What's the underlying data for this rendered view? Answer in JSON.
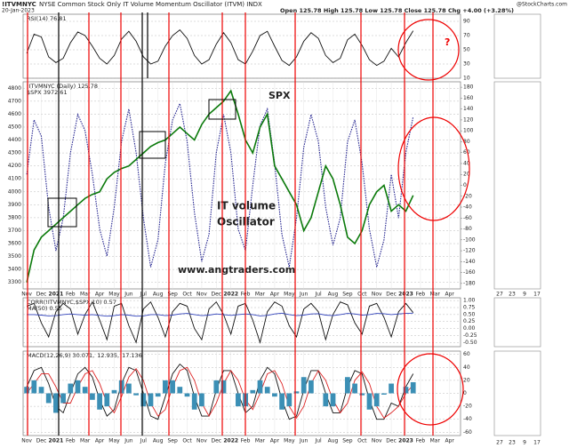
{
  "header": {
    "symbol": "!ITVMNYC",
    "title": "NYSE Common Stock Only IT Volume Momentum Oscillator (ITVM) INDX",
    "source": "@StockCharts.com",
    "date": "20-Jan-2023",
    "quote": "Open 125.78 High 125.78 Low 125.78 Close 125.78 Chg +4.00 (+3.28%)"
  },
  "inset": {
    "xlabels": [
      "27",
      "23",
      "9",
      "17"
    ]
  },
  "chart_data": [
    {
      "type": "line",
      "xlim": [
        -0.5,
        59.5
      ],
      "x": [
        0,
        1,
        2,
        3,
        4,
        5,
        6,
        7,
        8,
        9,
        10,
        11,
        12,
        13,
        14,
        15,
        16,
        17,
        18,
        19,
        20,
        21,
        22,
        23,
        24,
        25,
        26,
        27,
        28,
        29,
        30,
        31,
        32,
        33,
        34,
        35,
        36,
        37,
        38,
        39,
        40,
        41,
        42,
        43,
        44,
        45,
        46,
        47,
        48,
        49,
        50,
        51,
        52,
        53
      ],
      "ylim": [
        10,
        100
      ],
      "yticks": [
        10,
        30,
        50,
        70,
        90
      ],
      "grid": true,
      "series": [
        {
          "name": "RSI(14) 76.81",
          "color": "#111111",
          "values": [
            45,
            72,
            68,
            40,
            32,
            38,
            60,
            75,
            70,
            55,
            38,
            30,
            42,
            65,
            76,
            62,
            40,
            30,
            34,
            55,
            70,
            78,
            66,
            42,
            30,
            36,
            58,
            74,
            60,
            36,
            30,
            48,
            70,
            76,
            55,
            35,
            28,
            40,
            62,
            74,
            66,
            42,
            32,
            38,
            64,
            72,
            56,
            36,
            28,
            34,
            52,
            40,
            60,
            76.81
          ]
        }
      ]
    },
    {
      "type": "line",
      "xlim": [
        -0.5,
        59.5
      ],
      "x": [
        0,
        1,
        2,
        3,
        4,
        5,
        6,
        7,
        8,
        9,
        10,
        11,
        12,
        13,
        14,
        15,
        16,
        17,
        18,
        19,
        20,
        21,
        22,
        23,
        24,
        25,
        26,
        27,
        28,
        29,
        30,
        31,
        32,
        33,
        34,
        35,
        36,
        37,
        38,
        39,
        40,
        41,
        42,
        43,
        44,
        45,
        46,
        47,
        48,
        49,
        50,
        51,
        52,
        53
      ],
      "ylim": [
        3250,
        4850
      ],
      "yticks": [
        3300,
        3400,
        3500,
        3600,
        3700,
        3800,
        3900,
        4000,
        4100,
        4200,
        4300,
        4400,
        4500,
        4600,
        4700,
        4800
      ],
      "y2lim": [
        -190,
        190
      ],
      "y2ticks": [
        -180,
        -160,
        -140,
        -120,
        -100,
        -80,
        -60,
        -40,
        -20,
        0,
        20,
        40,
        60,
        80,
        100,
        120,
        140,
        160,
        180
      ],
      "grid": true,
      "xticks": [
        {
          "value": 0,
          "label": "Nov"
        },
        {
          "value": 2,
          "label": "Dec"
        },
        {
          "value": 4,
          "label": "2021"
        },
        {
          "value": 6,
          "label": "Feb"
        },
        {
          "value": 8,
          "label": "Mar"
        },
        {
          "value": 10,
          "label": "Apr"
        },
        {
          "value": 12,
          "label": "May"
        },
        {
          "value": 14,
          "label": "Jun"
        },
        {
          "value": 16,
          "label": "Jul"
        },
        {
          "value": 18,
          "label": "Aug"
        },
        {
          "value": 20,
          "label": "Sep"
        },
        {
          "value": 22,
          "label": "Oct"
        },
        {
          "value": 24,
          "label": "Nov"
        },
        {
          "value": 26,
          "label": "Dec"
        },
        {
          "value": 28,
          "label": "2022"
        },
        {
          "value": 30,
          "label": "Feb"
        },
        {
          "value": 32,
          "label": "Mar"
        },
        {
          "value": 34,
          "label": "Apr"
        },
        {
          "value": 36,
          "label": "May"
        },
        {
          "value": 38,
          "label": "Jun"
        },
        {
          "value": 40,
          "label": "Jul"
        },
        {
          "value": 42,
          "label": "Aug"
        },
        {
          "value": 44,
          "label": "Sep"
        },
        {
          "value": 46,
          "label": "Oct"
        },
        {
          "value": 48,
          "label": "Nov"
        },
        {
          "value": 50,
          "label": "Dec"
        },
        {
          "value": 52,
          "label": "2023"
        },
        {
          "value": 54,
          "label": "Feb"
        },
        {
          "value": 56,
          "label": "Mar"
        },
        {
          "value": 58,
          "label": "Apr"
        }
      ],
      "annotations": [
        "SPX",
        "IT volume",
        "Oscillator",
        "www.angtraders.com"
      ],
      "series": [
        {
          "name": "!ITVMNYC (Daily) 125.78",
          "color": "#23238f",
          "axis": "y2",
          "values": [
            20,
            120,
            90,
            -40,
            -120,
            -60,
            60,
            130,
            100,
            20,
            -80,
            -130,
            -40,
            80,
            140,
            60,
            -60,
            -150,
            -100,
            40,
            120,
            150,
            80,
            -50,
            -140,
            -90,
            60,
            130,
            60,
            -80,
            -120,
            0,
            110,
            140,
            40,
            -90,
            -150,
            -60,
            70,
            130,
            80,
            -40,
            -110,
            -60,
            80,
            120,
            40,
            -80,
            -150,
            -100,
            20,
            -60,
            60,
            125.78
          ]
        },
        {
          "name": "$SPX 3972.61",
          "color": "#0b7a0b",
          "values": [
            3300,
            3550,
            3650,
            3700,
            3750,
            3800,
            3850,
            3900,
            3950,
            3980,
            4000,
            4100,
            4150,
            4180,
            4200,
            4250,
            4300,
            4350,
            4380,
            4400,
            4450,
            4500,
            4450,
            4400,
            4520,
            4600,
            4650,
            4700,
            4780,
            4600,
            4400,
            4300,
            4500,
            4600,
            4200,
            4100,
            4000,
            3900,
            3700,
            3800,
            4000,
            4200,
            4100,
            3900,
            3650,
            3600,
            3700,
            3900,
            4000,
            4050,
            3850,
            3900,
            3850,
            3972.61
          ]
        }
      ]
    },
    {
      "type": "line",
      "xlim": [
        -0.5,
        59.5
      ],
      "x": [
        0,
        1,
        2,
        3,
        4,
        5,
        6,
        7,
        8,
        9,
        10,
        11,
        12,
        13,
        14,
        15,
        16,
        17,
        18,
        19,
        20,
        21,
        22,
        23,
        24,
        25,
        26,
        27,
        28,
        29,
        30,
        31,
        32,
        33,
        34,
        35,
        36,
        37,
        38,
        39,
        40,
        41,
        42,
        43,
        44,
        45,
        46,
        47,
        48,
        49,
        50,
        51,
        52,
        53
      ],
      "ylim": [
        -0.65,
        1.1
      ],
      "yticks": [
        {
          "value": -0.5,
          "label": "-0.50"
        },
        {
          "value": -0.25,
          "label": "-0.25"
        },
        {
          "value": 0,
          "label": "0.00"
        },
        {
          "value": 0.25,
          "label": "0.25"
        },
        {
          "value": 0.5,
          "label": "0.50"
        },
        {
          "value": 0.75,
          "label": "0.75"
        },
        {
          "value": 1,
          "label": "1.00"
        }
      ],
      "grid": true,
      "series": [
        {
          "name": "CORR(!ITVMNYC,$SPX,10) 0.57",
          "color": "#111111",
          "values": [
            0.8,
            0.9,
            0.2,
            -0.3,
            0.6,
            0.9,
            0.7,
            -0.2,
            0.5,
            0.95,
            0.3,
            -0.4,
            0.8,
            0.9,
            0.1,
            -0.5,
            0.7,
            0.95,
            0.4,
            -0.3,
            0.6,
            0.9,
            0.8,
            0,
            -0.4,
            0.7,
            0.95,
            0.5,
            -0.2,
            0.8,
            0.9,
            0.3,
            -0.5,
            0.6,
            0.95,
            0.8,
            0.1,
            -0.3,
            0.7,
            0.9,
            0.6,
            -0.4,
            0.5,
            0.95,
            0.85,
            0.2,
            -0.2,
            0.8,
            0.9,
            0.4,
            -0.3,
            0.6,
            0.9,
            0.57
          ]
        },
        {
          "name": "MA(50) 0.55",
          "color": "#3344bb",
          "values": [
            0.5,
            0.5,
            0.48,
            0.45,
            0.46,
            0.5,
            0.52,
            0.5,
            0.48,
            0.5,
            0.47,
            0.44,
            0.46,
            0.5,
            0.48,
            0.44,
            0.45,
            0.5,
            0.5,
            0.46,
            0.48,
            0.52,
            0.54,
            0.5,
            0.46,
            0.48,
            0.52,
            0.5,
            0.47,
            0.5,
            0.52,
            0.5,
            0.45,
            0.47,
            0.52,
            0.55,
            0.5,
            0.46,
            0.48,
            0.52,
            0.53,
            0.48,
            0.46,
            0.5,
            0.54,
            0.52,
            0.48,
            0.5,
            0.54,
            0.53,
            0.5,
            0.52,
            0.54,
            0.55
          ]
        }
      ]
    },
    {
      "type": "line",
      "xlim": [
        -0.5,
        59.5
      ],
      "x": [
        0,
        1,
        2,
        3,
        4,
        5,
        6,
        7,
        8,
        9,
        10,
        11,
        12,
        13,
        14,
        15,
        16,
        17,
        18,
        19,
        20,
        21,
        22,
        23,
        24,
        25,
        26,
        27,
        28,
        29,
        30,
        31,
        32,
        33,
        34,
        35,
        36,
        37,
        38,
        39,
        40,
        41,
        42,
        43,
        44,
        45,
        46,
        47,
        48,
        49,
        50,
        51,
        52,
        53
      ],
      "ylim": [
        -65,
        65
      ],
      "yticks": [
        -60,
        -40,
        -20,
        0,
        20,
        40,
        60
      ],
      "grid": true,
      "xticks": [
        {
          "value": 0,
          "label": "Nov"
        },
        {
          "value": 2,
          "label": "Dec"
        },
        {
          "value": 4,
          "label": "2021"
        },
        {
          "value": 6,
          "label": "Feb"
        },
        {
          "value": 8,
          "label": "Mar"
        },
        {
          "value": 10,
          "label": "Apr"
        },
        {
          "value": 12,
          "label": "May"
        },
        {
          "value": 14,
          "label": "Jun"
        },
        {
          "value": 16,
          "label": "Jul"
        },
        {
          "value": 18,
          "label": "Aug"
        },
        {
          "value": 20,
          "label": "Sep"
        },
        {
          "value": 22,
          "label": "Oct"
        },
        {
          "value": 24,
          "label": "Nov"
        },
        {
          "value": 26,
          "label": "Dec"
        },
        {
          "value": 28,
          "label": "2022"
        },
        {
          "value": 30,
          "label": "Feb"
        },
        {
          "value": 32,
          "label": "Mar"
        },
        {
          "value": 34,
          "label": "Apr"
        },
        {
          "value": 36,
          "label": "May"
        },
        {
          "value": 38,
          "label": "Jun"
        },
        {
          "value": 40,
          "label": "Jul"
        },
        {
          "value": 42,
          "label": "Aug"
        },
        {
          "value": 44,
          "label": "Sep"
        },
        {
          "value": 46,
          "label": "Oct"
        },
        {
          "value": 48,
          "label": "Nov"
        },
        {
          "value": 50,
          "label": "Dec"
        },
        {
          "value": 52,
          "label": "2023"
        },
        {
          "value": 54,
          "label": "Feb"
        },
        {
          "value": 56,
          "label": "Mar"
        },
        {
          "value": 58,
          "label": "Apr"
        }
      ],
      "series": [
        {
          "name": "MACD(12,26,9) 30.071,",
          "color": "#111111",
          "values": [
            10,
            35,
            40,
            15,
            -20,
            -30,
            0,
            30,
            40,
            25,
            -10,
            -35,
            -25,
            15,
            40,
            35,
            0,
            -35,
            -40,
            -5,
            30,
            45,
            35,
            -5,
            -35,
            -35,
            5,
            35,
            35,
            0,
            -30,
            -20,
            20,
            40,
            30,
            -10,
            -40,
            -35,
            5,
            35,
            35,
            0,
            -30,
            -30,
            10,
            35,
            30,
            -10,
            -40,
            -40,
            -15,
            -20,
            10,
            30.071
          ]
        },
        {
          "name": "12.935,",
          "color": "#dd2222",
          "values": [
            0,
            15,
            30,
            30,
            10,
            -15,
            -15,
            10,
            30,
            35,
            15,
            -15,
            -30,
            -5,
            25,
            38,
            20,
            -15,
            -35,
            -25,
            10,
            35,
            40,
            20,
            -15,
            -35,
            -15,
            15,
            35,
            20,
            -10,
            -25,
            0,
            30,
            35,
            15,
            -20,
            -38,
            -20,
            15,
            35,
            20,
            -10,
            -30,
            -15,
            20,
            33,
            15,
            -20,
            -38,
            -30,
            -20,
            0,
            12.935
          ]
        },
        {
          "name": "17.136",
          "color": "#3b8fb5",
          "type": "bar",
          "values": [
            10,
            20,
            10,
            -15,
            -30,
            -15,
            15,
            20,
            10,
            -10,
            -25,
            -20,
            5,
            20,
            15,
            -3,
            -20,
            -20,
            -5,
            20,
            20,
            10,
            -5,
            -25,
            -20,
            0,
            20,
            20,
            0,
            -20,
            -20,
            5,
            20,
            10,
            -5,
            -25,
            -20,
            3,
            25,
            20,
            0,
            -20,
            -20,
            0,
            25,
            15,
            -3,
            -25,
            -20,
            -2,
            15,
            0,
            10,
            17.136
          ]
        }
      ]
    }
  ]
}
